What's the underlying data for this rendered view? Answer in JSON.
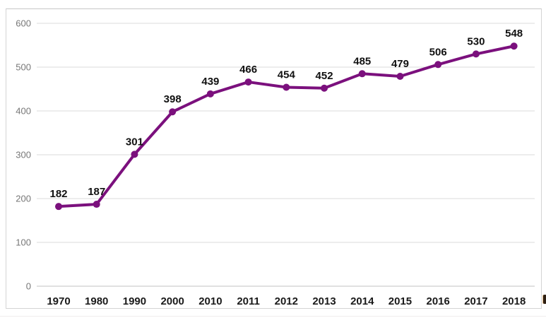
{
  "chart_data": {
    "type": "line",
    "title": "",
    "xlabel": "",
    "ylabel": "",
    "categories": [
      "1970",
      "1980",
      "1990",
      "2000",
      "2010",
      "2011",
      "2012",
      "2013",
      "2014",
      "2015",
      "2016",
      "2017",
      "2018"
    ],
    "values": [
      182,
      187,
      301,
      398,
      439,
      466,
      454,
      452,
      485,
      479,
      506,
      530,
      548
    ],
    "data_labels": [
      "182",
      "187",
      "301",
      "398",
      "439",
      "466",
      "454",
      "452",
      "485",
      "479",
      "506",
      "530",
      "548"
    ],
    "ylim": [
      0,
      600
    ],
    "yticks": [
      0,
      100,
      200,
      300,
      400,
      500,
      600
    ],
    "ytick_labels": [
      "0",
      "100",
      "200",
      "300",
      "400",
      "500",
      "600"
    ],
    "grid": true,
    "legend": false,
    "show_data_labels": true,
    "colors": {
      "line": "#7B107D",
      "marker": "#7B107D",
      "gridline": "#dbdbdb",
      "axis_line": "#c0c0c0",
      "y_tick_label": "#777777",
      "x_tick_label": "#1a1a1a",
      "data_label": "#111111",
      "frame_border": "#d4d4d4",
      "background": "#ffffff"
    }
  }
}
